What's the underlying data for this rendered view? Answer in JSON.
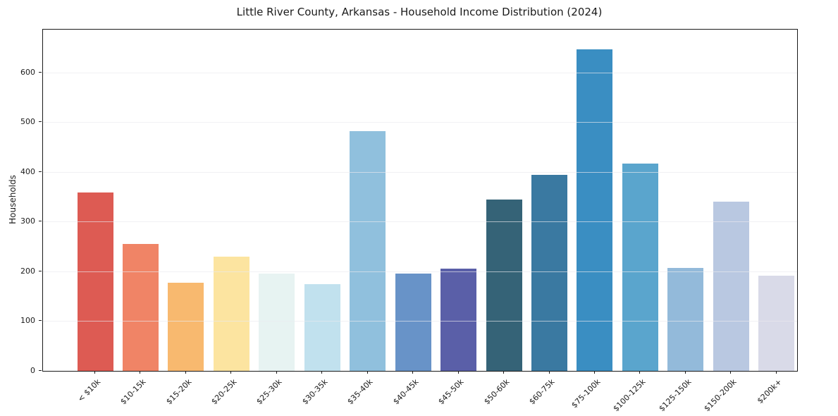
{
  "chart_data": {
    "type": "bar",
    "title": "Little River County, Arkansas - Household Income Distribution (2024)",
    "xlabel": "",
    "ylabel": "Households",
    "categories": [
      "< $10k",
      "$10-15k",
      "$15-20k",
      "$20-25k",
      "$25-30k",
      "$30-35k",
      "$35-40k",
      "$40-45k",
      "$45-50k",
      "$50-60k",
      "$60-75k",
      "$75-100k",
      "$100-125k",
      "$125-150k",
      "$150-200k",
      "$200k+"
    ],
    "values": [
      359,
      255,
      177,
      229,
      195,
      175,
      482,
      196,
      205,
      345,
      394,
      647,
      417,
      207,
      340,
      192
    ],
    "bar_colors": [
      "#dd5b53",
      "#f08466",
      "#f8b96f",
      "#fce4a0",
      "#e7f3f2",
      "#c1e1ee",
      "#90c0dd",
      "#6893c8",
      "#5a5fa8",
      "#356377",
      "#3a79a1",
      "#3a8ec2",
      "#5aa5cd",
      "#93bada",
      "#b9c8e1",
      "#d9dae8"
    ],
    "yticks": [
      0,
      100,
      200,
      300,
      400,
      500,
      600
    ],
    "ylim": [
      0,
      686
    ],
    "grid": "horizontal",
    "legend": "none",
    "colors": {
      "grid_color": "rgba(233,233,238,0.65)",
      "spine_color": "#1a1a1a",
      "text_color": "#1a1a1a",
      "background": "#ffffff"
    }
  }
}
